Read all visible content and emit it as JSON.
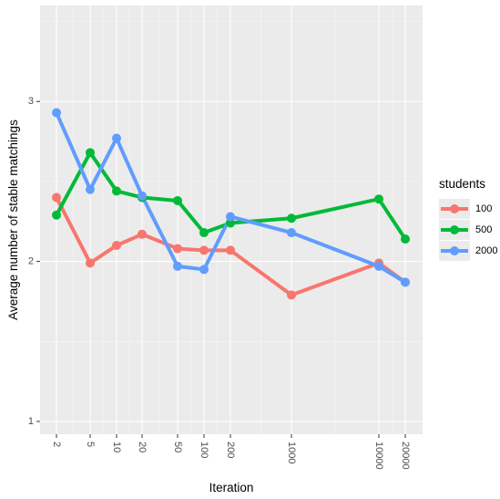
{
  "chart_data": {
    "type": "line",
    "xlabel": "Iteration",
    "ylabel": "Average number of stable matchings",
    "x_tick_labels": [
      "2",
      "5",
      "10",
      "20",
      "50",
      "100",
      "200",
      "1000",
      "10000",
      "20000"
    ],
    "y_tick_labels": [
      "1",
      "2",
      "3"
    ],
    "y_ticks": [
      1,
      2,
      3
    ],
    "ylim": [
      0.92,
      3.6
    ],
    "grid": true,
    "legend": {
      "title": "students",
      "position": "right"
    },
    "series": [
      {
        "name": "100",
        "color": "#F8766D",
        "values": [
          2.4,
          1.99,
          2.1,
          2.17,
          2.08,
          2.07,
          2.07,
          1.79,
          1.99,
          1.87
        ]
      },
      {
        "name": "500",
        "color": "#00BA38",
        "values": [
          2.29,
          2.68,
          2.44,
          2.4,
          2.38,
          2.18,
          2.24,
          2.27,
          2.39,
          2.14
        ]
      },
      {
        "name": "2000",
        "color": "#619CFF",
        "values": [
          2.93,
          2.45,
          2.77,
          2.41,
          1.97,
          1.95,
          2.28,
          2.18,
          1.97,
          1.87
        ]
      }
    ]
  }
}
